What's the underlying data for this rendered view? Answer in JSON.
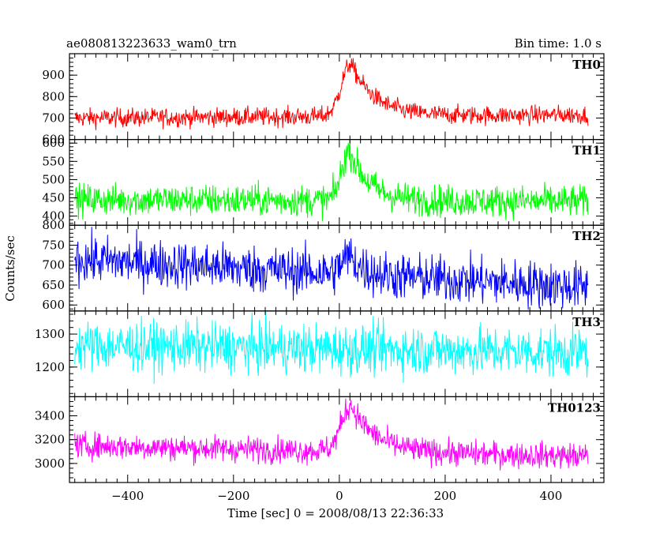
{
  "chart_data": {
    "type": "line",
    "title": "ae080813223633_wam0_trn",
    "subtitle": "Bin time: 1.0 s",
    "xlabel": "Time [sec] 0 = 2008/08/13 22:36:33",
    "ylabel": "Counts/sec",
    "xlim": [
      -510,
      500
    ],
    "x_ticks": [
      -400,
      -200,
      0,
      200,
      400
    ],
    "x_range_data": [
      -500,
      470
    ],
    "grid": false,
    "panels": [
      {
        "name": "TH0",
        "color": "#ff0000",
        "ylim": [
          600,
          1000
        ],
        "y_ticks": [
          600,
          700,
          800,
          900
        ],
        "baseline_start": 700,
        "baseline_end": 715,
        "noise": 22,
        "peak_time": 22,
        "peak_amplitude": 245,
        "rise": 18,
        "decay": 45
      },
      {
        "name": "TH1",
        "color": "#00ff00",
        "ylim": [
          375,
          610
        ],
        "y_ticks": [
          400,
          450,
          500,
          550,
          600
        ],
        "baseline_start": 445,
        "baseline_end": 440,
        "noise": 22,
        "peak_time": 20,
        "peak_amplitude": 140,
        "rise": 15,
        "decay": 35
      },
      {
        "name": "TH2",
        "color": "#0000ff",
        "ylim": [
          585,
          800
        ],
        "y_ticks": [
          600,
          650,
          700,
          750,
          800
        ],
        "baseline_start": 715,
        "baseline_end": 645,
        "noise": 30,
        "peak_time": 20,
        "peak_amplitude": 45,
        "rise": 15,
        "decay": 25
      },
      {
        "name": "TH3",
        "color": "#00ffff",
        "ylim": [
          1110,
          1370
        ],
        "y_ticks": [
          1200,
          1300
        ],
        "baseline_start": 1265,
        "baseline_end": 1245,
        "noise": 38,
        "peak_time": 20,
        "peak_amplitude": 0,
        "rise": 15,
        "decay": 25
      },
      {
        "name": "TH0123",
        "color": "#ff00ff",
        "ylim": [
          2840,
          3560
        ],
        "y_ticks": [
          3000,
          3200,
          3400
        ],
        "baseline_start": 3150,
        "baseline_end": 3060,
        "noise": 55,
        "peak_time": 22,
        "peak_amplitude": 390,
        "rise": 18,
        "decay": 45
      }
    ]
  }
}
